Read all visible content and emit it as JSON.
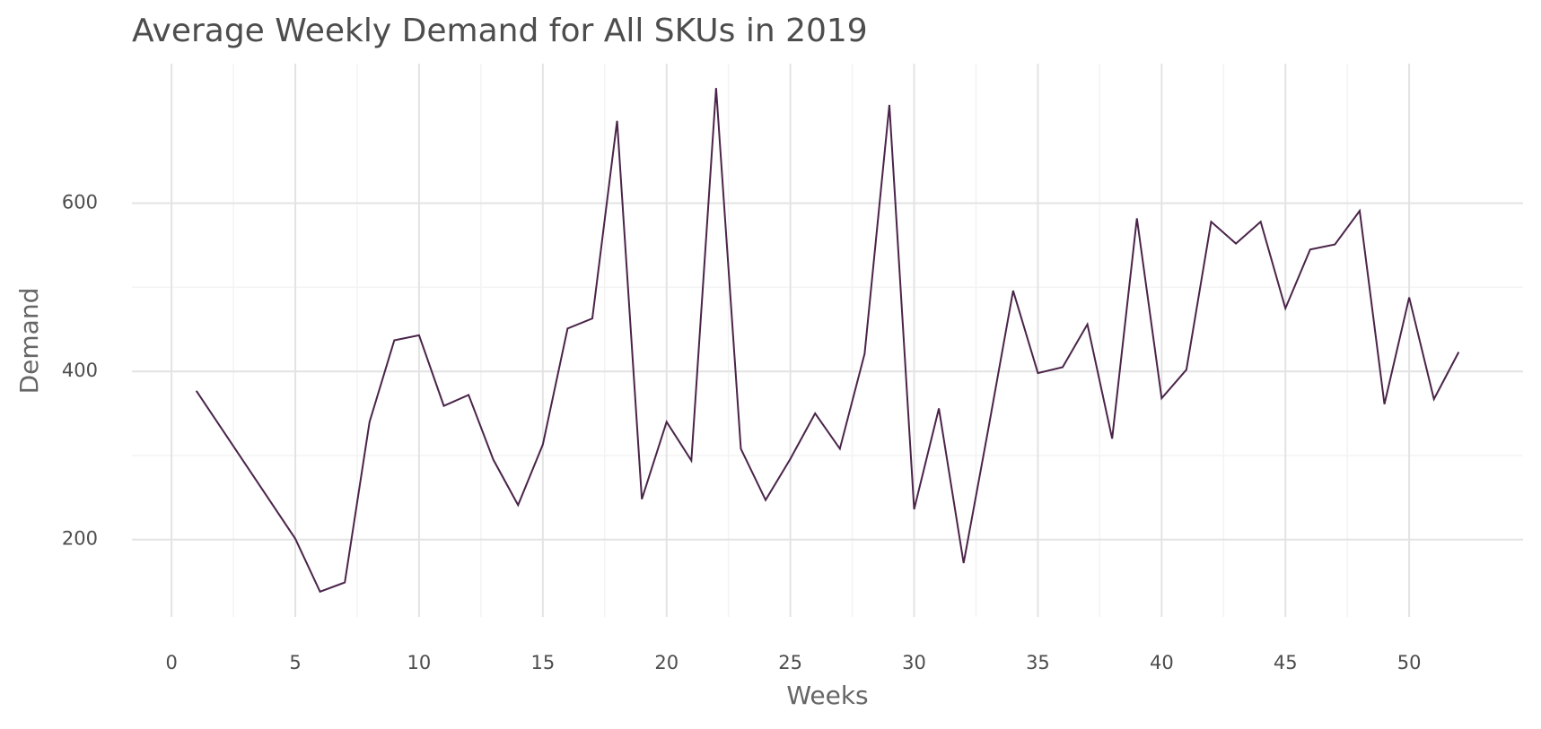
{
  "chart_data": {
    "type": "line",
    "title": "Average Weekly Demand for All SKUs in 2019",
    "x_label": "Weeks",
    "y_label": "Demand",
    "x": [
      1,
      5,
      6,
      7,
      8,
      9,
      10,
      11,
      12,
      13,
      14,
      15,
      16,
      17,
      18,
      19,
      20,
      21,
      22,
      23,
      24,
      25,
      26,
      27,
      28,
      29,
      30,
      31,
      32,
      33,
      34,
      35,
      36,
      37,
      38,
      39,
      40,
      41,
      42,
      43,
      44,
      45,
      46,
      47,
      48,
      49,
      50,
      51,
      52
    ],
    "series": [
      {
        "name": "Demand",
        "color": "#4a2449",
        "values": [
          377,
          201,
          138,
          149,
          340,
          437,
          443,
          359,
          372,
          295,
          241,
          313,
          451,
          463,
          698,
          248,
          340,
          294,
          737,
          308,
          247,
          296,
          350,
          308,
          421,
          717,
          236,
          356,
          172,
          332,
          496,
          398,
          405,
          456,
          320,
          582,
          368,
          402,
          578,
          552,
          578,
          475,
          545,
          551,
          591,
          361,
          488,
          367,
          423
        ]
      }
    ],
    "xlim": [
      -1.6,
      54.6
    ],
    "ylim": [
      108,
      766
    ],
    "xticks": [
      0,
      5,
      10,
      15,
      20,
      25,
      30,
      35,
      40,
      45,
      50
    ],
    "yticks": [
      200,
      400,
      600
    ],
    "grid": true
  }
}
